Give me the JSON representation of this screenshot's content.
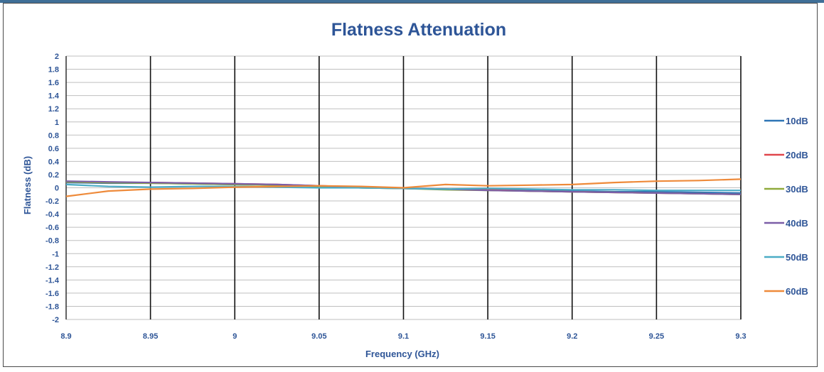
{
  "chart_data": {
    "type": "line",
    "title": "Flatness Attenuation",
    "xlabel": "Frequency (GHz)",
    "ylabel": "Flatness (dB)",
    "xlim": [
      8.9,
      9.3
    ],
    "ylim": [
      -2,
      2
    ],
    "x_ticks": [
      "8.9",
      "8.95",
      "9",
      "9.05",
      "9.1",
      "9.15",
      "9.2",
      "9.25",
      "9.3"
    ],
    "y_ticks": [
      "2",
      "1.8",
      "1.6",
      "1.4",
      "1.2",
      "1",
      "0.8",
      "0.6",
      "0.4",
      "0.2",
      "0",
      "-0.2",
      "-0.4",
      "-0.6",
      "-0.8",
      "-1",
      "-1.2",
      "-1.4",
      "-1.6",
      "-1.8",
      "-2"
    ],
    "grid": true,
    "legend_position": "right",
    "x": [
      8.9,
      8.925,
      8.95,
      8.975,
      9.0,
      9.025,
      9.05,
      9.075,
      9.1,
      9.125,
      9.15,
      9.175,
      9.2,
      9.225,
      9.25,
      9.275,
      9.3
    ],
    "series": [
      {
        "name": "10dB",
        "color": "#2e75b6",
        "values": [
          0.08,
          0.07,
          0.07,
          0.06,
          0.05,
          0.04,
          0.02,
          0.0,
          -0.01,
          -0.02,
          -0.03,
          -0.04,
          -0.05,
          -0.06,
          -0.06,
          -0.07,
          -0.08
        ]
      },
      {
        "name": "20dB",
        "color": "#e0474c",
        "values": [
          0.09,
          0.08,
          0.08,
          0.07,
          0.06,
          0.05,
          0.03,
          0.01,
          -0.01,
          -0.02,
          -0.03,
          -0.05,
          -0.06,
          -0.07,
          -0.08,
          -0.09,
          -0.1
        ]
      },
      {
        "name": "30dB",
        "color": "#8faa3b",
        "values": [
          0.09,
          0.08,
          0.07,
          0.06,
          0.05,
          0.04,
          0.02,
          0.0,
          -0.01,
          -0.03,
          -0.04,
          -0.05,
          -0.06,
          -0.07,
          -0.08,
          -0.09,
          -0.1
        ]
      },
      {
        "name": "40dB",
        "color": "#7b5ea7",
        "values": [
          0.1,
          0.09,
          0.08,
          0.07,
          0.06,
          0.05,
          0.03,
          0.01,
          -0.01,
          -0.02,
          -0.04,
          -0.05,
          -0.06,
          -0.07,
          -0.08,
          -0.09,
          -0.1
        ]
      },
      {
        "name": "50dB",
        "color": "#4bacc6",
        "values": [
          0.05,
          0.02,
          0.01,
          0.02,
          0.02,
          0.01,
          0.0,
          0.0,
          -0.01,
          -0.02,
          -0.01,
          -0.02,
          -0.03,
          -0.03,
          -0.04,
          -0.04,
          -0.04
        ]
      },
      {
        "name": "60dB",
        "color": "#ee8a3a",
        "values": [
          -0.13,
          -0.05,
          -0.02,
          -0.01,
          0.01,
          0.02,
          0.03,
          0.02,
          0.0,
          0.05,
          0.03,
          0.04,
          0.05,
          0.08,
          0.1,
          0.11,
          0.13
        ]
      }
    ]
  }
}
